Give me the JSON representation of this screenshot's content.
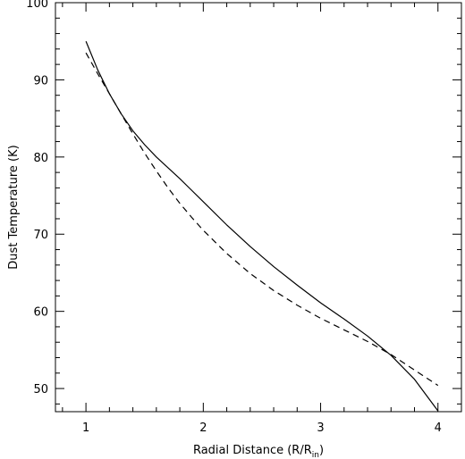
{
  "chart_data": {
    "type": "line",
    "title": "",
    "xlabel": "Radial Distance (R/R",
    "xlabel_sub": "in",
    "xlabel_tail": ")",
    "ylabel": "Dust Temperature (K)",
    "xlim": [
      0.74,
      4.2
    ],
    "ylim": [
      47,
      100
    ],
    "xticks": [
      1,
      2,
      3,
      4
    ],
    "xtick_labels": [
      "1",
      "2",
      "3",
      "4"
    ],
    "yticks": [
      50,
      60,
      70,
      80,
      90,
      100
    ],
    "ytick_labels": [
      "50",
      "60",
      "70",
      "80",
      "90",
      "100"
    ],
    "x_minor_step": 0.2,
    "y_minor_step": 2,
    "grid": false,
    "series": [
      {
        "style": "solid",
        "color": "#000000",
        "points": [
          [
            1.0,
            95.0
          ],
          [
            1.1,
            91.3
          ],
          [
            1.2,
            88.2
          ],
          [
            1.3,
            85.6
          ],
          [
            1.4,
            83.4
          ],
          [
            1.5,
            81.6
          ],
          [
            1.6,
            80.0
          ],
          [
            1.7,
            78.6
          ],
          [
            1.8,
            77.2
          ],
          [
            1.9,
            75.7
          ],
          [
            2.0,
            74.2
          ],
          [
            2.2,
            71.2
          ],
          [
            2.4,
            68.4
          ],
          [
            2.6,
            65.8
          ],
          [
            2.8,
            63.4
          ],
          [
            3.0,
            61.1
          ],
          [
            3.2,
            59.0
          ],
          [
            3.4,
            56.8
          ],
          [
            3.6,
            54.3
          ],
          [
            3.8,
            51.2
          ],
          [
            4.0,
            47.1
          ]
        ]
      },
      {
        "style": "dashed",
        "color": "#000000",
        "points": [
          [
            1.0,
            93.5
          ],
          [
            1.1,
            90.8
          ],
          [
            1.2,
            88.2
          ],
          [
            1.3,
            85.6
          ],
          [
            1.4,
            83.0
          ],
          [
            1.5,
            80.5
          ],
          [
            1.6,
            78.2
          ],
          [
            1.7,
            76.0
          ],
          [
            1.8,
            74.0
          ],
          [
            1.9,
            72.2
          ],
          [
            2.0,
            70.5
          ],
          [
            2.2,
            67.5
          ],
          [
            2.4,
            64.9
          ],
          [
            2.6,
            62.7
          ],
          [
            2.8,
            60.8
          ],
          [
            3.0,
            59.1
          ],
          [
            3.2,
            57.6
          ],
          [
            3.4,
            56.1
          ],
          [
            3.6,
            54.4
          ],
          [
            3.8,
            52.4
          ],
          [
            4.0,
            50.4
          ]
        ]
      }
    ]
  }
}
